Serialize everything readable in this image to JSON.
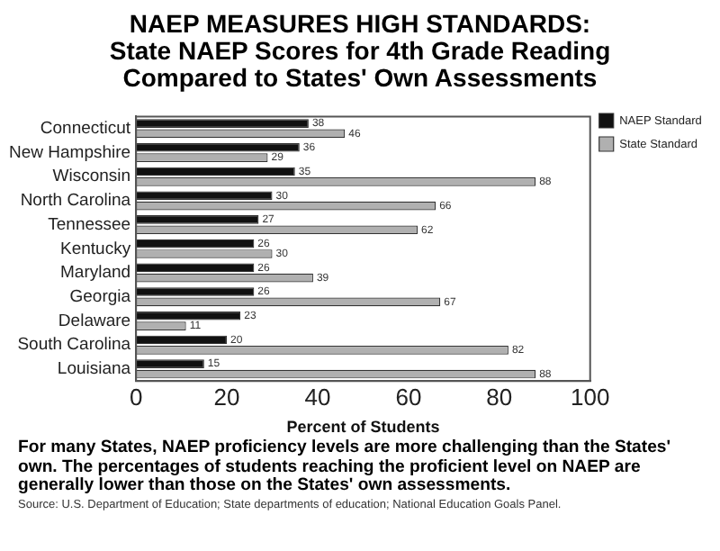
{
  "chart_data": {
    "type": "bar",
    "orientation": "horizontal",
    "title": "NAEP MEASURES HIGH STANDARDS:\nState NAEP Scores for 4th Grade Reading\nCompared to States' Own Assessments",
    "xlabel": "Percent of Students",
    "categories": [
      "Connecticut",
      "New Hampshire",
      "Wisconsin",
      "North Carolina",
      "Tennessee",
      "Kentucky",
      "Maryland",
      "Georgia",
      "Delaware",
      "South Carolina",
      "Louisiana"
    ],
    "series": [
      {
        "name": "NAEP Standard",
        "color": "#111111",
        "values": [
          38,
          36,
          35,
          30,
          27,
          26,
          26,
          26,
          23,
          20,
          15
        ]
      },
      {
        "name": "State Standard",
        "color": "#b0b0b0",
        "values": [
          46,
          29,
          88,
          66,
          62,
          30,
          39,
          67,
          11,
          82,
          88
        ]
      }
    ],
    "xlim": [
      0,
      100
    ],
    "xticks": [
      0,
      20,
      40,
      60,
      80,
      100
    ],
    "grid": false,
    "legend": "top right",
    "data_labels": true,
    "annotations": [
      "For many States, NAEP proficiency levels are more challenging than the States' own. The percentages of students reaching the proficient  level on NAEP are generally lower than  those on the States' own assessments.",
      "Source:  U.S. Department of Education; State departments of education; National Education Goals Panel."
    ]
  }
}
